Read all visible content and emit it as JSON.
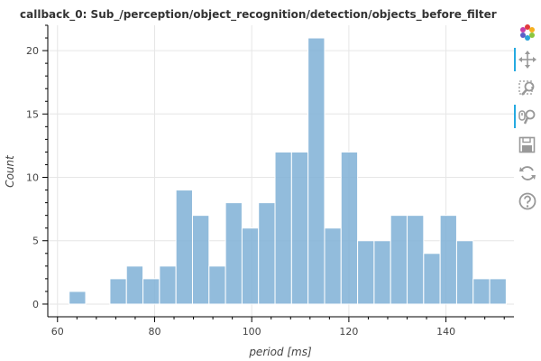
{
  "chart_data": {
    "type": "bar",
    "title": "callback_0: Sub_/perception/object_recognition/detection/objects_before_filter",
    "xlabel": "period [ms]",
    "ylabel": "Count",
    "xlim": [
      58,
      154
    ],
    "ylim": [
      -1,
      22
    ],
    "x_ticks": [
      60,
      80,
      100,
      120,
      140
    ],
    "y_ticks": [
      0,
      5,
      10,
      15,
      20
    ],
    "grid": true,
    "color": "#7fb0d6",
    "bin_width": 3.4,
    "bins": [
      {
        "start": 62.4,
        "count": 1
      },
      {
        "start": 65.8,
        "count": 0
      },
      {
        "start": 69.2,
        "count": 0
      },
      {
        "start": 70.8,
        "count": 2
      },
      {
        "start": 74.2,
        "count": 3
      },
      {
        "start": 77.6,
        "count": 2
      },
      {
        "start": 81.0,
        "count": 3
      },
      {
        "start": 84.4,
        "count": 9
      },
      {
        "start": 87.8,
        "count": 7
      },
      {
        "start": 91.2,
        "count": 3
      },
      {
        "start": 94.6,
        "count": 8
      },
      {
        "start": 98.0,
        "count": 6
      },
      {
        "start": 101.4,
        "count": 8
      },
      {
        "start": 104.8,
        "count": 12
      },
      {
        "start": 108.2,
        "count": 12
      },
      {
        "start": 111.6,
        "count": 21
      },
      {
        "start": 115.0,
        "count": 6
      },
      {
        "start": 118.4,
        "count": 12
      },
      {
        "start": 121.8,
        "count": 5
      },
      {
        "start": 125.2,
        "count": 5
      },
      {
        "start": 128.6,
        "count": 7
      },
      {
        "start": 132.0,
        "count": 7
      },
      {
        "start": 135.4,
        "count": 4
      },
      {
        "start": 138.8,
        "count": 7
      },
      {
        "start": 142.2,
        "count": 5
      },
      {
        "start": 145.6,
        "count": 2
      },
      {
        "start": 149.0,
        "count": 2
      }
    ]
  },
  "toolbar": {
    "tools": [
      {
        "name": "bokeh-logo-icon",
        "active": false
      },
      {
        "name": "pan-icon",
        "active": true
      },
      {
        "name": "box-zoom-icon",
        "active": false
      },
      {
        "name": "wheel-zoom-icon",
        "active": true
      },
      {
        "name": "save-icon",
        "active": false
      },
      {
        "name": "reset-icon",
        "active": false
      },
      {
        "name": "help-icon",
        "active": false
      }
    ]
  }
}
